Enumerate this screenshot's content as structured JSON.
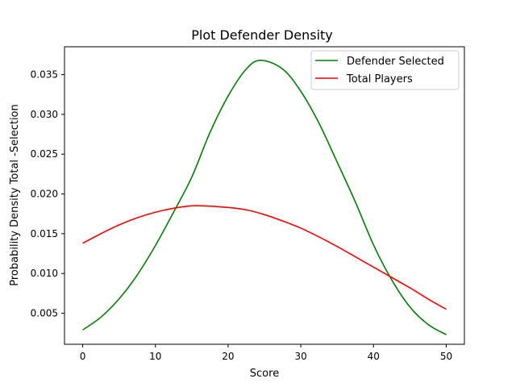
{
  "chart_data": {
    "type": "line",
    "title": "Plot Defender Density",
    "xlabel": "Score",
    "ylabel": "Probability Density Total -Selection",
    "xlim": [
      -2.5,
      52.5
    ],
    "ylim": [
      0.0011,
      0.0385
    ],
    "x_ticks": [
      0,
      10,
      20,
      30,
      40,
      50
    ],
    "y_ticks": [
      0.005,
      0.01,
      0.015,
      0.02,
      0.025,
      0.03,
      0.035
    ],
    "y_tick_labels": [
      "0.005",
      "0.010",
      "0.015",
      "0.020",
      "0.025",
      "0.030",
      "0.035"
    ],
    "legend_position": "top-right",
    "grid": false,
    "series": [
      {
        "name": "Defender Selected",
        "color": "#008000",
        "x": [
          0,
          2.5,
          5,
          7.5,
          10,
          12.5,
          15,
          17.5,
          20,
          22.5,
          24.5,
          27.5,
          30,
          32.5,
          35,
          37.5,
          40,
          42.5,
          45,
          47.5,
          50
        ],
        "y": [
          0.0029,
          0.0045,
          0.0068,
          0.0098,
          0.0135,
          0.0177,
          0.0221,
          0.0277,
          0.0323,
          0.0357,
          0.0368,
          0.0357,
          0.0329,
          0.0289,
          0.024,
          0.019,
          0.0136,
          0.0092,
          0.0058,
          0.0036,
          0.0023
        ]
      },
      {
        "name": "Total Players",
        "color": "#ff0000",
        "x": [
          0,
          2.5,
          5,
          7.5,
          10,
          12.5,
          15,
          16.5,
          20,
          22.5,
          25,
          27.5,
          30,
          32.5,
          35,
          37.5,
          40,
          42.5,
          45,
          47.5,
          50
        ],
        "y": [
          0.0138,
          0.015,
          0.0161,
          0.017,
          0.0177,
          0.0182,
          0.0185,
          0.0185,
          0.0183,
          0.018,
          0.0174,
          0.0166,
          0.0157,
          0.0146,
          0.0134,
          0.0121,
          0.0108,
          0.0095,
          0.0082,
          0.0068,
          0.0055
        ]
      }
    ]
  }
}
